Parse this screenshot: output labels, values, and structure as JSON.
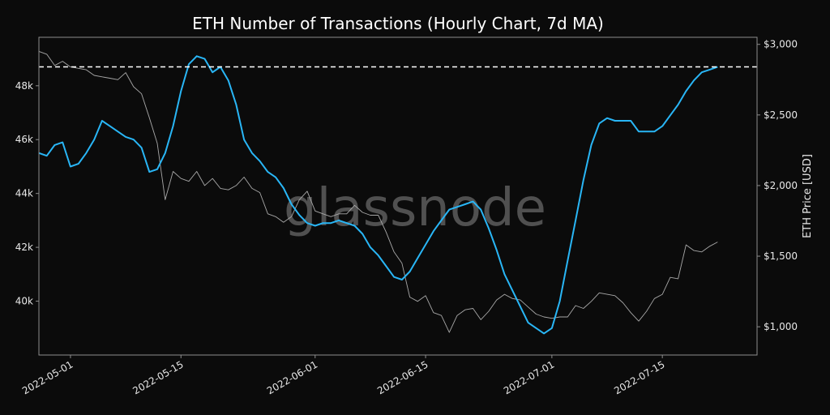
{
  "chart_data": {
    "type": "line",
    "title": "ETH Number of Transactions (Hourly Chart, 7d MA)",
    "watermark": "glassnode",
    "ylabel_left": "",
    "ylabel_right": "ETH Price [USD]",
    "ylim_left": [
      38000,
      49800
    ],
    "ylim_right": [
      800,
      3050
    ],
    "xlim": [
      "2022-04-27",
      "2022-07-27"
    ],
    "x_ticks": [
      "2022-05-01",
      "2022-05-15",
      "2022-06-01",
      "2022-06-15",
      "2022-07-01",
      "2022-07-15"
    ],
    "y_ticks_left": [
      {
        "v": 40000,
        "label": "40k"
      },
      {
        "v": 42000,
        "label": "42k"
      },
      {
        "v": 44000,
        "label": "44k"
      },
      {
        "v": 46000,
        "label": "46k"
      },
      {
        "v": 48000,
        "label": "48k"
      }
    ],
    "y_ticks_right": [
      {
        "v": 1000,
        "label": "$1,000"
      },
      {
        "v": 1500,
        "label": "$1,500"
      },
      {
        "v": 2000,
        "label": "$2,000"
      },
      {
        "v": 2500,
        "label": "$2,500"
      },
      {
        "v": 3000,
        "label": "$3,000"
      }
    ],
    "reference_line": {
      "value": 48700,
      "axis": "left",
      "style": "dashed",
      "color": "#ffffff"
    },
    "grid": false,
    "series": [
      {
        "axis": "left",
        "color": "#29b6f6",
        "points": [
          [
            "2022-04-27",
            45500
          ],
          [
            "2022-04-28",
            45400
          ],
          [
            "2022-04-29",
            45800
          ],
          [
            "2022-04-30",
            45900
          ],
          [
            "2022-05-01",
            45000
          ],
          [
            "2022-05-02",
            45100
          ],
          [
            "2022-05-03",
            45500
          ],
          [
            "2022-05-04",
            46000
          ],
          [
            "2022-05-05",
            46700
          ],
          [
            "2022-05-06",
            46500
          ],
          [
            "2022-05-07",
            46300
          ],
          [
            "2022-05-08",
            46100
          ],
          [
            "2022-05-09",
            46000
          ],
          [
            "2022-05-10",
            45700
          ],
          [
            "2022-05-11",
            44800
          ],
          [
            "2022-05-12",
            44900
          ],
          [
            "2022-05-13",
            45500
          ],
          [
            "2022-05-14",
            46500
          ],
          [
            "2022-05-15",
            47800
          ],
          [
            "2022-05-16",
            48800
          ],
          [
            "2022-05-17",
            49100
          ],
          [
            "2022-05-18",
            49000
          ],
          [
            "2022-05-19",
            48500
          ],
          [
            "2022-05-20",
            48700
          ],
          [
            "2022-05-21",
            48200
          ],
          [
            "2022-05-22",
            47300
          ],
          [
            "2022-05-23",
            46000
          ],
          [
            "2022-05-24",
            45500
          ],
          [
            "2022-05-25",
            45200
          ],
          [
            "2022-05-26",
            44800
          ],
          [
            "2022-05-27",
            44600
          ],
          [
            "2022-05-28",
            44200
          ],
          [
            "2022-05-29",
            43600
          ],
          [
            "2022-05-30",
            43200
          ],
          [
            "2022-05-31",
            42900
          ],
          [
            "2022-06-01",
            42800
          ],
          [
            "2022-06-02",
            42900
          ],
          [
            "2022-06-03",
            42900
          ],
          [
            "2022-06-04",
            43000
          ],
          [
            "2022-06-05",
            42900
          ],
          [
            "2022-06-06",
            42800
          ],
          [
            "2022-06-07",
            42500
          ],
          [
            "2022-06-08",
            42000
          ],
          [
            "2022-06-09",
            41700
          ],
          [
            "2022-06-10",
            41300
          ],
          [
            "2022-06-11",
            40900
          ],
          [
            "2022-06-12",
            40800
          ],
          [
            "2022-06-13",
            41100
          ],
          [
            "2022-06-14",
            41600
          ],
          [
            "2022-06-15",
            42100
          ],
          [
            "2022-06-16",
            42600
          ],
          [
            "2022-06-17",
            43000
          ],
          [
            "2022-06-18",
            43400
          ],
          [
            "2022-06-19",
            43500
          ],
          [
            "2022-06-20",
            43600
          ],
          [
            "2022-06-21",
            43700
          ],
          [
            "2022-06-22",
            43400
          ],
          [
            "2022-06-23",
            42700
          ],
          [
            "2022-06-24",
            41900
          ],
          [
            "2022-06-25",
            41000
          ],
          [
            "2022-06-26",
            40400
          ],
          [
            "2022-06-27",
            39800
          ],
          [
            "2022-06-28",
            39200
          ],
          [
            "2022-06-29",
            39000
          ],
          [
            "2022-06-30",
            38800
          ],
          [
            "2022-07-01",
            39000
          ],
          [
            "2022-07-02",
            40000
          ],
          [
            "2022-07-03",
            41500
          ],
          [
            "2022-07-04",
            43000
          ],
          [
            "2022-07-05",
            44500
          ],
          [
            "2022-07-06",
            45800
          ],
          [
            "2022-07-07",
            46600
          ],
          [
            "2022-07-08",
            46800
          ],
          [
            "2022-07-09",
            46700
          ],
          [
            "2022-07-10",
            46700
          ],
          [
            "2022-07-11",
            46700
          ],
          [
            "2022-07-12",
            46300
          ],
          [
            "2022-07-13",
            46300
          ],
          [
            "2022-07-14",
            46300
          ],
          [
            "2022-07-15",
            46500
          ],
          [
            "2022-07-16",
            46900
          ],
          [
            "2022-07-17",
            47300
          ],
          [
            "2022-07-18",
            47800
          ],
          [
            "2022-07-19",
            48200
          ],
          [
            "2022-07-20",
            48500
          ],
          [
            "2022-07-21",
            48600
          ],
          [
            "2022-07-22",
            48700
          ]
        ]
      },
      {
        "axis": "right",
        "color": "#a8a8a8",
        "points": [
          [
            "2022-04-27",
            2950
          ],
          [
            "2022-04-28",
            2930
          ],
          [
            "2022-04-29",
            2850
          ],
          [
            "2022-04-30",
            2880
          ],
          [
            "2022-05-01",
            2840
          ],
          [
            "2022-05-02",
            2830
          ],
          [
            "2022-05-03",
            2820
          ],
          [
            "2022-05-04",
            2780
          ],
          [
            "2022-05-05",
            2770
          ],
          [
            "2022-05-06",
            2760
          ],
          [
            "2022-05-07",
            2750
          ],
          [
            "2022-05-08",
            2800
          ],
          [
            "2022-05-09",
            2700
          ],
          [
            "2022-05-10",
            2650
          ],
          [
            "2022-05-11",
            2480
          ],
          [
            "2022-05-12",
            2300
          ],
          [
            "2022-05-13",
            1900
          ],
          [
            "2022-05-14",
            2100
          ],
          [
            "2022-05-15",
            2050
          ],
          [
            "2022-05-16",
            2030
          ],
          [
            "2022-05-17",
            2100
          ],
          [
            "2022-05-18",
            2000
          ],
          [
            "2022-05-19",
            2050
          ],
          [
            "2022-05-20",
            1980
          ],
          [
            "2022-05-21",
            1970
          ],
          [
            "2022-05-22",
            2000
          ],
          [
            "2022-05-23",
            2060
          ],
          [
            "2022-05-24",
            1980
          ],
          [
            "2022-05-25",
            1950
          ],
          [
            "2022-05-26",
            1800
          ],
          [
            "2022-05-27",
            1780
          ],
          [
            "2022-05-28",
            1740
          ],
          [
            "2022-05-29",
            1780
          ],
          [
            "2022-05-30",
            1900
          ],
          [
            "2022-05-31",
            1960
          ],
          [
            "2022-06-01",
            1820
          ],
          [
            "2022-06-02",
            1800
          ],
          [
            "2022-06-03",
            1780
          ],
          [
            "2022-06-04",
            1800
          ],
          [
            "2022-06-05",
            1800
          ],
          [
            "2022-06-06",
            1860
          ],
          [
            "2022-06-07",
            1810
          ],
          [
            "2022-06-08",
            1790
          ],
          [
            "2022-06-09",
            1790
          ],
          [
            "2022-06-10",
            1670
          ],
          [
            "2022-06-11",
            1530
          ],
          [
            "2022-06-12",
            1450
          ],
          [
            "2022-06-13",
            1210
          ],
          [
            "2022-06-14",
            1180
          ],
          [
            "2022-06-15",
            1220
          ],
          [
            "2022-06-16",
            1100
          ],
          [
            "2022-06-17",
            1080
          ],
          [
            "2022-06-18",
            960
          ],
          [
            "2022-06-19",
            1080
          ],
          [
            "2022-06-20",
            1120
          ],
          [
            "2022-06-21",
            1130
          ],
          [
            "2022-06-22",
            1050
          ],
          [
            "2022-06-23",
            1110
          ],
          [
            "2022-06-24",
            1190
          ],
          [
            "2022-06-25",
            1230
          ],
          [
            "2022-06-26",
            1200
          ],
          [
            "2022-06-27",
            1190
          ],
          [
            "2022-06-28",
            1140
          ],
          [
            "2022-06-29",
            1090
          ],
          [
            "2022-06-30",
            1070
          ],
          [
            "2022-07-01",
            1060
          ],
          [
            "2022-07-02",
            1070
          ],
          [
            "2022-07-03",
            1070
          ],
          [
            "2022-07-04",
            1150
          ],
          [
            "2022-07-05",
            1130
          ],
          [
            "2022-07-06",
            1180
          ],
          [
            "2022-07-07",
            1240
          ],
          [
            "2022-07-08",
            1230
          ],
          [
            "2022-07-09",
            1220
          ],
          [
            "2022-07-10",
            1170
          ],
          [
            "2022-07-11",
            1100
          ],
          [
            "2022-07-12",
            1040
          ],
          [
            "2022-07-13",
            1110
          ],
          [
            "2022-07-14",
            1200
          ],
          [
            "2022-07-15",
            1230
          ],
          [
            "2022-07-16",
            1350
          ],
          [
            "2022-07-17",
            1340
          ],
          [
            "2022-07-18",
            1580
          ],
          [
            "2022-07-19",
            1540
          ],
          [
            "2022-07-20",
            1530
          ],
          [
            "2022-07-21",
            1570
          ],
          [
            "2022-07-22",
            1600
          ]
        ]
      }
    ]
  }
}
